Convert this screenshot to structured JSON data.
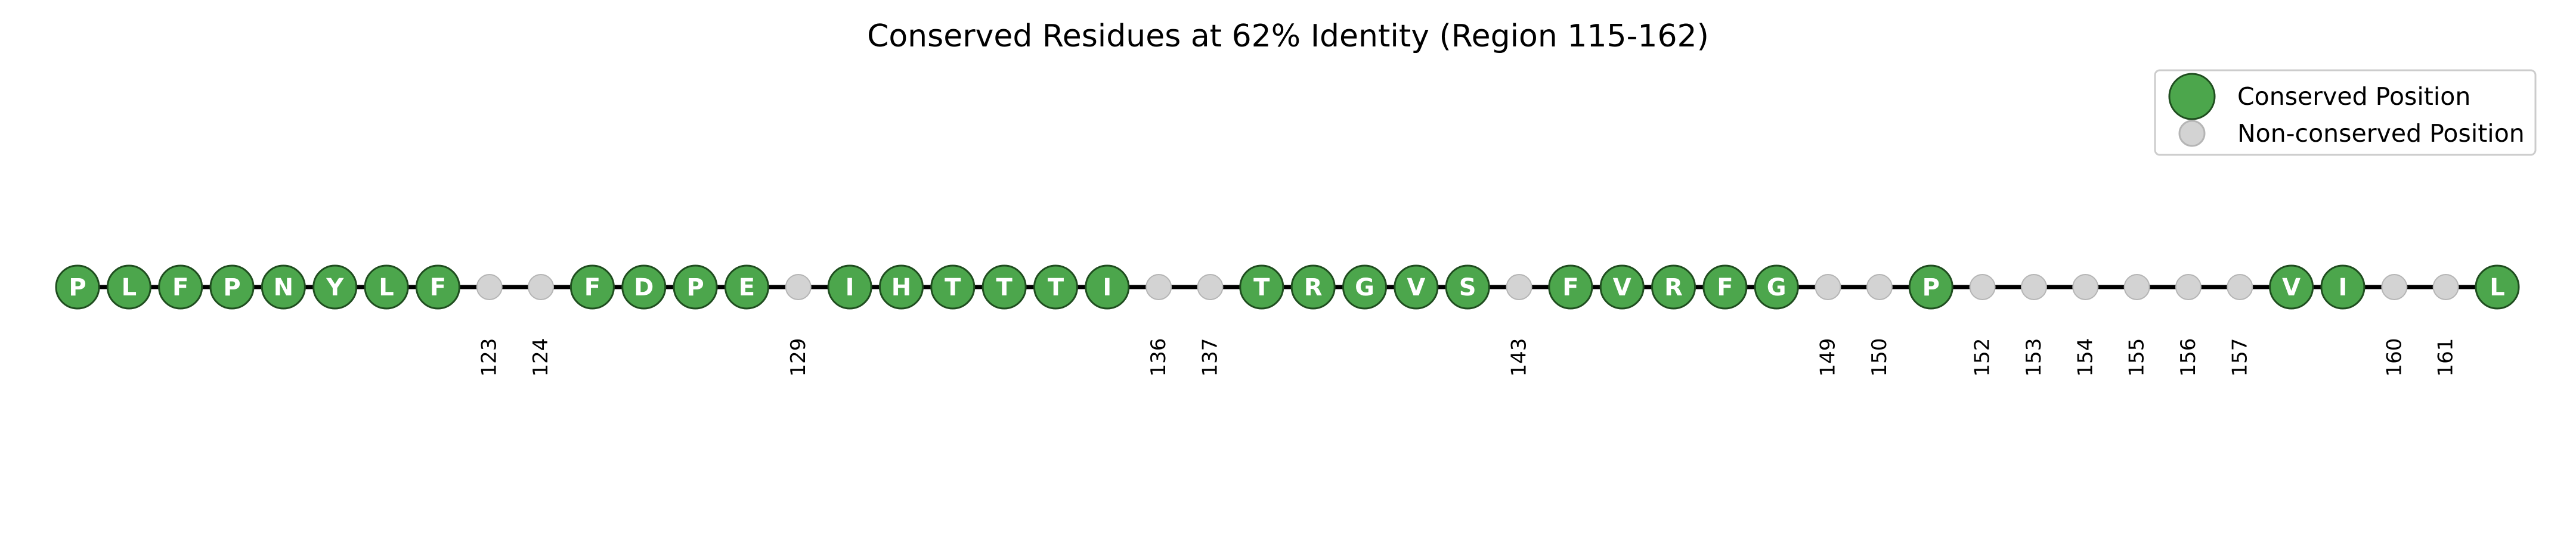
{
  "colors": {
    "conserved_fill": "#4ca64c",
    "conserved_edge": "#1f4d1f",
    "nonconserved_fill": "#d3d3d3",
    "nonconserved_edge": "#b5b5b5",
    "axis_line": "#000000"
  },
  "chart_data": {
    "type": "scatter",
    "title": "Conserved Residues at 62% Identity (Region 115-162)",
    "xlim": [
      115,
      162
    ],
    "legend": {
      "placement": "top-right",
      "entries": [
        "Conserved Position",
        "Non-conserved Position"
      ]
    },
    "positions": [
      {
        "pos": 115,
        "conserved": true,
        "residue": "P"
      },
      {
        "pos": 116,
        "conserved": true,
        "residue": "L"
      },
      {
        "pos": 117,
        "conserved": true,
        "residue": "F"
      },
      {
        "pos": 118,
        "conserved": true,
        "residue": "P"
      },
      {
        "pos": 119,
        "conserved": true,
        "residue": "N"
      },
      {
        "pos": 120,
        "conserved": true,
        "residue": "Y"
      },
      {
        "pos": 121,
        "conserved": true,
        "residue": "L"
      },
      {
        "pos": 122,
        "conserved": true,
        "residue": "F"
      },
      {
        "pos": 123,
        "conserved": false,
        "label": "123"
      },
      {
        "pos": 124,
        "conserved": false,
        "label": "124"
      },
      {
        "pos": 125,
        "conserved": true,
        "residue": "F"
      },
      {
        "pos": 126,
        "conserved": true,
        "residue": "D"
      },
      {
        "pos": 127,
        "conserved": true,
        "residue": "P"
      },
      {
        "pos": 128,
        "conserved": true,
        "residue": "E"
      },
      {
        "pos": 129,
        "conserved": false,
        "label": "129"
      },
      {
        "pos": 130,
        "conserved": true,
        "residue": "I"
      },
      {
        "pos": 131,
        "conserved": true,
        "residue": "H"
      },
      {
        "pos": 132,
        "conserved": true,
        "residue": "T"
      },
      {
        "pos": 133,
        "conserved": true,
        "residue": "T"
      },
      {
        "pos": 134,
        "conserved": true,
        "residue": "T"
      },
      {
        "pos": 135,
        "conserved": true,
        "residue": "I"
      },
      {
        "pos": 136,
        "conserved": false,
        "label": "136"
      },
      {
        "pos": 137,
        "conserved": false,
        "label": "137"
      },
      {
        "pos": 138,
        "conserved": true,
        "residue": "T"
      },
      {
        "pos": 139,
        "conserved": true,
        "residue": "R"
      },
      {
        "pos": 140,
        "conserved": true,
        "residue": "G"
      },
      {
        "pos": 141,
        "conserved": true,
        "residue": "V"
      },
      {
        "pos": 142,
        "conserved": true,
        "residue": "S"
      },
      {
        "pos": 143,
        "conserved": false,
        "label": "143"
      },
      {
        "pos": 144,
        "conserved": true,
        "residue": "F"
      },
      {
        "pos": 145,
        "conserved": true,
        "residue": "V"
      },
      {
        "pos": 146,
        "conserved": true,
        "residue": "R"
      },
      {
        "pos": 147,
        "conserved": true,
        "residue": "F"
      },
      {
        "pos": 148,
        "conserved": true,
        "residue": "G"
      },
      {
        "pos": 149,
        "conserved": false,
        "label": "149"
      },
      {
        "pos": 150,
        "conserved": false,
        "label": "150"
      },
      {
        "pos": 151,
        "conserved": true,
        "residue": "P"
      },
      {
        "pos": 152,
        "conserved": false,
        "label": "152"
      },
      {
        "pos": 153,
        "conserved": false,
        "label": "153"
      },
      {
        "pos": 154,
        "conserved": false,
        "label": "154"
      },
      {
        "pos": 155,
        "conserved": false,
        "label": "155"
      },
      {
        "pos": 156,
        "conserved": false,
        "label": "156"
      },
      {
        "pos": 157,
        "conserved": false,
        "label": "157"
      },
      {
        "pos": 158,
        "conserved": true,
        "residue": "V"
      },
      {
        "pos": 159,
        "conserved": true,
        "residue": "I"
      },
      {
        "pos": 160,
        "conserved": false,
        "label": "160"
      },
      {
        "pos": 161,
        "conserved": false,
        "label": "161"
      },
      {
        "pos": 162,
        "conserved": true,
        "residue": "L"
      }
    ]
  }
}
